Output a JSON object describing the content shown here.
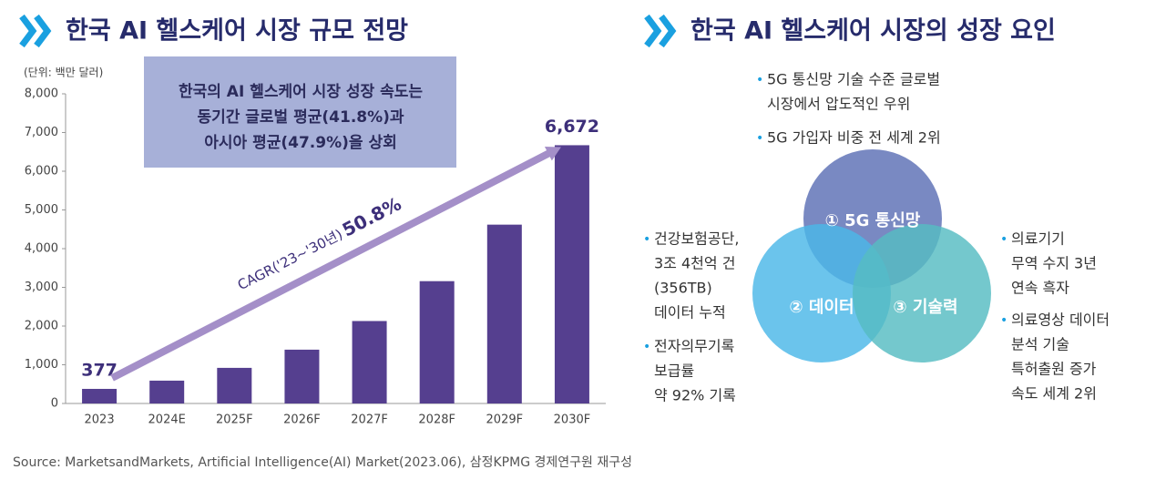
{
  "chart_data": {
    "type": "bar",
    "title": "한국 AI 헬스케어 시장 규모 전망",
    "unit_label": "(단위: 백만 달러)",
    "categories": [
      "2023",
      "2024E",
      "2025F",
      "2026F",
      "2027F",
      "2028F",
      "2029F",
      "2030F"
    ],
    "values": [
      377,
      590,
      920,
      1390,
      2130,
      3160,
      4620,
      6672
    ],
    "value_labels": [
      "377",
      null,
      null,
      null,
      null,
      null,
      null,
      "6,672"
    ],
    "color": "#553f8f",
    "ylim": [
      0,
      8000
    ],
    "yticks": [
      0,
      {
        "value": 1000,
        "label": "1,000"
      },
      {
        "value": 2000,
        "label": "2,000"
      },
      {
        "value": 3000,
        "label": "3,000"
      },
      {
        "value": 4000,
        "label": "4,000"
      },
      {
        "value": 5000,
        "label": "5,000"
      },
      {
        "value": 6000,
        "label": "6,000"
      },
      {
        "value": 7000,
        "label": "7,000"
      },
      {
        "value": 8000,
        "label": "8,000"
      }
    ],
    "callout": [
      "한국의 AI 헬스케어 시장 성장 속도는",
      "동기간 글로벌 평균(41.8%)과",
      "아시아 평균(47.9%)을 상회"
    ],
    "cagr_label": "CAGR('23~'30년)",
    "cagr_value": "50.8%"
  },
  "growth_factors": {
    "title": "한국 AI 헬스케어 시장의 성장 요인",
    "circles": [
      "① 5G 통신망",
      "② 데이터",
      "③ 기술력"
    ],
    "top_bullets": [
      [
        "5G 통신망 기술 수준 글로벌",
        "시장에서 압도적인 우위"
      ],
      [
        "5G 가입자 비중 전 세계 2위"
      ]
    ],
    "left_bullets": [
      [
        "건강보험공단,",
        "3조 4천억 건",
        "(356TB)",
        "데이터 누적"
      ],
      [
        "전자의무기록",
        "보급률",
        "약 92% 기록"
      ]
    ],
    "right_bullets": [
      [
        "의료기기",
        "무역 수지 3년",
        "연속 흑자"
      ],
      [
        "의료영상 데이터",
        "분석 기술",
        "특허출원 증가",
        "속도 세계 2위"
      ]
    ]
  },
  "source": "Source: MarketsandMarkets, Artificial Intelligence(AI) Market(2023.06), 삼정KPMG 경제연구원 재구성"
}
